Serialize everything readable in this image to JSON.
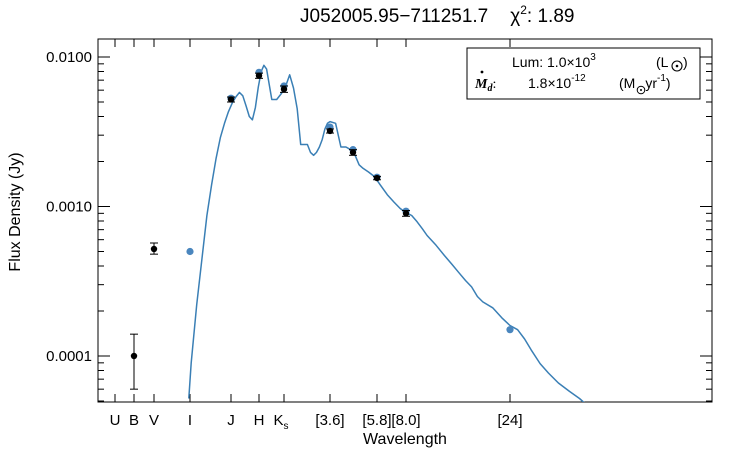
{
  "chart_data": {
    "type": "line",
    "title": {
      "object": "J052005.95−711251.7",
      "chi_symbol": "χ",
      "chi_exp": "2",
      "chi_value": ": 1.89"
    },
    "xlabel": "Wavelength",
    "ylabel": "Flux Density (Jy)",
    "y_scale": "log",
    "ylim": [
      5e-05,
      0.015
    ],
    "y_ticks": [
      {
        "value": 0.01,
        "label": "0.0100"
      },
      {
        "value": 0.001,
        "label": "0.0010"
      },
      {
        "value": 0.0001,
        "label": "0.0001"
      }
    ],
    "x_ticks": [
      {
        "label": "U",
        "sub": "",
        "band": "U"
      },
      {
        "label": "B",
        "sub": "",
        "band": "B"
      },
      {
        "label": "V",
        "sub": "",
        "band": "V"
      },
      {
        "label": "I",
        "sub": "",
        "band": "I"
      },
      {
        "label": "J",
        "sub": "",
        "band": "J"
      },
      {
        "label": "H",
        "sub": "",
        "band": "H"
      },
      {
        "label": "K",
        "sub": "s",
        "band": "Ks"
      },
      {
        "label": "[3.6]",
        "sub": "",
        "band": "3.6"
      },
      {
        "label": "[5.8]",
        "sub": "",
        "band": "5.8"
      },
      {
        "label": "[8.0]",
        "sub": "",
        "band": "8.0"
      },
      {
        "label": "[24]",
        "sub": "",
        "band": "24"
      }
    ],
    "legend": {
      "placement": "top-right",
      "lum_label": "Lum: 1.0×10",
      "lum_exp": "3",
      "lum_unit": "(L",
      "lum_unit_close": ")",
      "mdot_symbol": "M",
      "mdot_sub": "d",
      "mdot_colon": ":",
      "mdot_value": "1.8×10",
      "mdot_exp": "-12",
      "mdot_unit_open": "(M",
      "mdot_unit_rest": "yr",
      "mdot_unit_exp": "-1",
      "mdot_unit_close": ")"
    },
    "colors": {
      "model": "#3a7fb5",
      "observed": "#000000",
      "synthetic": "#4a86be"
    },
    "model_sed": {
      "x": [
        "0.78",
        "0.80",
        "0.85",
        "0.90",
        "0.95",
        "1.00",
        "1.05",
        "1.10",
        "1.15",
        "1.20",
        "1.25",
        "1.30",
        "1.35",
        "1.40",
        "1.45",
        "1.50",
        "1.55",
        "1.60",
        "1.65",
        "1.70",
        "1.75",
        "1.80",
        "1.90",
        "2.00",
        "2.10",
        "2.20",
        "2.30",
        "2.40",
        "2.50",
        "2.60",
        "2.70",
        "2.80",
        "2.90",
        "3.00",
        "3.10",
        "3.20",
        "3.30",
        "3.40",
        "3.50",
        "3.60",
        "3.80",
        "4.00",
        "4.20",
        "4.40",
        "4.60",
        "4.80",
        "5.00",
        "5.30",
        "5.60",
        "5.80",
        "6.00",
        "6.50",
        "7.00",
        "7.50",
        "8.00",
        "8.50",
        "9.00",
        "9.50",
        "10.0",
        "11.0",
        "12.0",
        "13.0",
        "14.0",
        "15.0",
        "16.0",
        "17.0",
        "18.0",
        "20.0",
        "22.0",
        "24.0",
        "26.0",
        "28.0",
        "30.0",
        "33.0",
        "36.0",
        "40.0",
        "45.0",
        "50.0",
        "55.0",
        "60.0"
      ],
      "y": [
        5.2e-05,
        9e-05,
        0.00022,
        0.00045,
        0.00087,
        0.0014,
        0.0021,
        0.0029,
        0.0036,
        0.0043,
        0.0049,
        0.0054,
        0.0058,
        0.0055,
        0.0047,
        0.004,
        0.0038,
        0.0046,
        0.0063,
        0.008,
        0.0088,
        0.0083,
        0.0052,
        0.0052,
        0.0057,
        0.0064,
        0.0076,
        0.0062,
        0.0045,
        0.0026,
        0.0026,
        0.0026,
        0.0023,
        0.0022,
        0.0023,
        0.0025,
        0.0028,
        0.0033,
        0.0036,
        0.0037,
        0.0036,
        0.0025,
        0.0025,
        0.0024,
        0.0022,
        0.0019,
        0.0018,
        0.0017,
        0.0016,
        0.0015,
        0.0014,
        0.0012,
        0.00107,
        0.00097,
        0.00091,
        0.00087,
        0.00079,
        0.00071,
        0.00064,
        0.00055,
        0.00047,
        0.00041,
        0.00036,
        0.00032,
        0.00029,
        0.00025,
        0.00023,
        0.00021,
        0.00018,
        0.00016,
        0.00015,
        0.00013,
        0.00011,
        8.9e-05,
        7.7e-05,
        6.6e-05,
        5.8e-05,
        5.2e-05,
        4.6e-05,
        4e-05
      ]
    },
    "observed_points": [
      {
        "band": "B",
        "y": 0.0001,
        "err_low": 6e-05,
        "err_high": 0.00014
      },
      {
        "band": "V",
        "y": 0.00052,
        "err_low": 0.00048,
        "err_high": 0.00057
      },
      {
        "band": "J",
        "y": 0.0052,
        "err_low": 0.005,
        "err_high": 0.0054
      },
      {
        "band": "H",
        "y": 0.0075,
        "err_low": 0.0072,
        "err_high": 0.0078
      },
      {
        "band": "Ks",
        "y": 0.0061,
        "err_low": 0.0058,
        "err_high": 0.0064
      },
      {
        "band": "3.6",
        "y": 0.0032,
        "err_low": 0.0031,
        "err_high": 0.0033
      },
      {
        "band": "4.5",
        "y": 0.0023,
        "err_low": 0.0022,
        "err_high": 0.0024
      },
      {
        "band": "5.8",
        "y": 0.00155,
        "err_low": 0.00151,
        "err_high": 0.00159
      },
      {
        "band": "8.0",
        "y": 0.0009,
        "err_low": 0.00086,
        "err_high": 0.00094
      }
    ],
    "model_points": [
      {
        "band": "I",
        "y": 0.0005
      },
      {
        "band": "J",
        "y": 0.0053
      },
      {
        "band": "H",
        "y": 0.0079
      },
      {
        "band": "Ks",
        "y": 0.0064
      },
      {
        "band": "3.6",
        "y": 0.0034
      },
      {
        "band": "4.5",
        "y": 0.0024
      },
      {
        "band": "5.8",
        "y": 0.00157
      },
      {
        "band": "8.0",
        "y": 0.00093
      },
      {
        "band": "24",
        "y": 0.00015
      }
    ]
  }
}
